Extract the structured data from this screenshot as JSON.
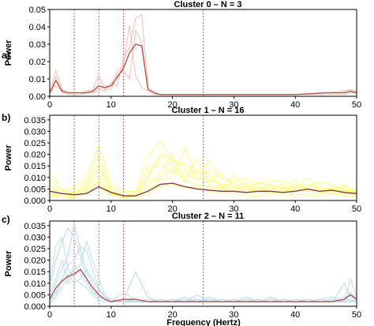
{
  "figure": {
    "xlabel": "Frequency (Hertz)"
  },
  "chart_data": [
    {
      "type": "line",
      "panel_label": "a)",
      "title": "Cluster 0 – N = 3",
      "xlabel": "",
      "ylabel": "Power",
      "xlim": [
        0,
        50
      ],
      "ylim": [
        0,
        0.05
      ],
      "xticks": [
        "0",
        "10",
        "20",
        "30",
        "40",
        "50"
      ],
      "yticks": [
        "0.00",
        "0.01",
        "0.02",
        "0.03",
        "0.04",
        "0.05"
      ],
      "ytick_values": [
        0,
        0.01,
        0.02,
        0.03,
        0.04,
        0.05
      ],
      "vlines": [
        4,
        8,
        12,
        25
      ],
      "colors": {
        "individual": "#f3b4a5",
        "mean": "#c0504d",
        "vline": "#e06060"
      },
      "x": [
        0,
        1,
        2,
        3,
        4,
        5,
        6,
        7,
        8,
        9,
        10,
        11,
        12,
        13,
        14,
        15,
        16,
        17,
        18,
        20,
        22,
        25,
        30,
        35,
        40,
        45,
        48,
        49,
        50
      ],
      "series": [
        {
          "values": [
            0.002,
            0.006,
            0.003,
            0.002,
            0.002,
            0.002,
            0.002,
            0.002,
            0.004,
            0.003,
            0.008,
            0.006,
            0.022,
            0.028,
            0.045,
            0.047,
            0.006,
            0.002,
            0.001,
            0.001,
            0.001,
            0.001,
            0.001,
            0.001,
            0.001,
            0.002,
            0.002,
            0.003,
            0.002
          ]
        },
        {
          "values": [
            0.002,
            0.015,
            0.004,
            0.002,
            0.002,
            0.002,
            0.003,
            0.004,
            0.012,
            0.004,
            0.004,
            0.012,
            0.015,
            0.01,
            0.038,
            0.031,
            0.004,
            0.002,
            0.001,
            0.001,
            0.001,
            0.001,
            0.001,
            0.001,
            0.001,
            0.002,
            0.003,
            0.004,
            0.003
          ]
        },
        {
          "values": [
            0.002,
            0.011,
            0.002,
            0.001,
            0.001,
            0.001,
            0.002,
            0.002,
            0.004,
            0.006,
            0.006,
            0.014,
            0.018,
            0.041,
            0.012,
            0.005,
            0.003,
            0.001,
            0.001,
            0.001,
            0.001,
            0.001,
            0.001,
            0.001,
            0.001,
            0.001,
            0.001,
            0.002,
            0.002
          ]
        }
      ],
      "mean": [
        0.002,
        0.009,
        0.003,
        0.002,
        0.002,
        0.002,
        0.002,
        0.003,
        0.006,
        0.005,
        0.006,
        0.011,
        0.016,
        0.025,
        0.03,
        0.029,
        0.004,
        0.002,
        0.001,
        0.001,
        0.001,
        0.001,
        0.001,
        0.001,
        0.001,
        0.002,
        0.002,
        0.003,
        0.002
      ]
    },
    {
      "type": "line",
      "panel_label": "b)",
      "title": "Cluster 1 – N = 16",
      "xlabel": "",
      "ylabel": "Power",
      "xlim": [
        0,
        50
      ],
      "ylim": [
        0,
        0.037
      ],
      "xticks": [
        "0",
        "10",
        "20",
        "30",
        "40",
        "50"
      ],
      "yticks": [
        "0.000",
        "0.005",
        "0.010",
        "0.015",
        "0.020",
        "0.025",
        "0.030",
        "0.035"
      ],
      "ytick_values": [
        0,
        0.005,
        0.01,
        0.015,
        0.02,
        0.025,
        0.03,
        0.035
      ],
      "vlines": [
        4,
        8,
        12,
        25
      ],
      "colors": {
        "individual": "#ffff66",
        "mean": "#8b3a3a",
        "vline": "#e06060"
      },
      "x": [
        0,
        2,
        4,
        6,
        8,
        10,
        12,
        14,
        16,
        18,
        20,
        22,
        24,
        26,
        28,
        30,
        32,
        34,
        36,
        38,
        40,
        42,
        44,
        46,
        48,
        50
      ],
      "series": [
        {
          "values": [
            0.006,
            0.004,
            0.003,
            0.006,
            0.014,
            0.005,
            0.002,
            0.003,
            0.01,
            0.019,
            0.015,
            0.012,
            0.009,
            0.011,
            0.006,
            0.005,
            0.006,
            0.004,
            0.005,
            0.006,
            0.004,
            0.007,
            0.005,
            0.004,
            0.003,
            0.003
          ]
        },
        {
          "values": [
            0.003,
            0.002,
            0.002,
            0.004,
            0.009,
            0.003,
            0.001,
            0.002,
            0.006,
            0.012,
            0.02,
            0.008,
            0.014,
            0.007,
            0.004,
            0.008,
            0.003,
            0.006,
            0.004,
            0.003,
            0.009,
            0.004,
            0.006,
            0.003,
            0.005,
            0.002
          ]
        },
        {
          "values": [
            0.012,
            0.005,
            0.004,
            0.008,
            0.02,
            0.006,
            0.003,
            0.002,
            0.004,
            0.009,
            0.01,
            0.023,
            0.011,
            0.013,
            0.005,
            0.004,
            0.007,
            0.005,
            0.003,
            0.005,
            0.006,
            0.005,
            0.003,
            0.006,
            0.004,
            0.004
          ]
        },
        {
          "values": [
            0.004,
            0.003,
            0.003,
            0.005,
            0.011,
            0.004,
            0.002,
            0.003,
            0.014,
            0.016,
            0.012,
            0.01,
            0.018,
            0.009,
            0.007,
            0.006,
            0.004,
            0.008,
            0.006,
            0.004,
            0.005,
            0.01,
            0.004,
            0.005,
            0.006,
            0.003
          ]
        },
        {
          "values": [
            0.002,
            0.002,
            0.001,
            0.003,
            0.006,
            0.002,
            0.001,
            0.001,
            0.003,
            0.006,
            0.007,
            0.005,
            0.006,
            0.004,
            0.003,
            0.003,
            0.002,
            0.002,
            0.003,
            0.002,
            0.003,
            0.002,
            0.002,
            0.003,
            0.002,
            0.002
          ]
        },
        {
          "values": [
            0.009,
            0.004,
            0.006,
            0.01,
            0.024,
            0.008,
            0.004,
            0.004,
            0.019,
            0.026,
            0.017,
            0.016,
            0.012,
            0.017,
            0.009,
            0.008,
            0.01,
            0.007,
            0.009,
            0.008,
            0.007,
            0.006,
            0.008,
            0.007,
            0.005,
            0.004
          ]
        },
        {
          "values": [
            0.003,
            0.003,
            0.002,
            0.004,
            0.008,
            0.003,
            0.002,
            0.002,
            0.008,
            0.01,
            0.014,
            0.009,
            0.007,
            0.006,
            0.005,
            0.011,
            0.005,
            0.004,
            0.007,
            0.005,
            0.004,
            0.005,
            0.003,
            0.004,
            0.007,
            0.003
          ]
        },
        {
          "values": [
            0.005,
            0.003,
            0.003,
            0.007,
            0.016,
            0.004,
            0.002,
            0.003,
            0.011,
            0.02,
            0.018,
            0.014,
            0.01,
            0.008,
            0.012,
            0.006,
            0.008,
            0.006,
            0.005,
            0.007,
            0.005,
            0.004,
            0.006,
            0.005,
            0.004,
            0.005
          ]
        }
      ],
      "mean": [
        0.004,
        0.003,
        0.0025,
        0.003,
        0.006,
        0.0035,
        0.002,
        0.002,
        0.004,
        0.007,
        0.0075,
        0.006,
        0.005,
        0.0045,
        0.004,
        0.004,
        0.0035,
        0.004,
        0.004,
        0.0035,
        0.004,
        0.005,
        0.004,
        0.0045,
        0.0035,
        0.003
      ]
    },
    {
      "type": "line",
      "panel_label": "c)",
      "title": "Cluster 2 – N = 11",
      "xlabel": "Frequency (Hertz)",
      "ylabel": "Power",
      "xlim": [
        0,
        50
      ],
      "ylim": [
        0,
        0.037
      ],
      "xticks": [
        "0",
        "10",
        "20",
        "30",
        "40",
        "50"
      ],
      "yticks": [
        "0.000",
        "0.005",
        "0.010",
        "0.015",
        "0.020",
        "0.025",
        "0.030",
        "0.035"
      ],
      "ytick_values": [
        0,
        0.005,
        0.01,
        0.015,
        0.02,
        0.025,
        0.03,
        0.035
      ],
      "vlines": [
        4,
        8,
        12,
        25
      ],
      "colors": {
        "individual": "#a8d8ea",
        "mean": "#c0504d",
        "vline": "#e06060"
      },
      "x": [
        0,
        1,
        2,
        3,
        4,
        5,
        6,
        7,
        8,
        9,
        10,
        12,
        14,
        16,
        18,
        20,
        22,
        24,
        26,
        28,
        30,
        32,
        34,
        36,
        38,
        40,
        42,
        44,
        46,
        48,
        49,
        50
      ],
      "series": [
        {
          "values": [
            0.008,
            0.02,
            0.028,
            0.034,
            0.03,
            0.022,
            0.012,
            0.006,
            0.004,
            0.003,
            0.002,
            0.006,
            0.003,
            0.002,
            0.003,
            0.002,
            0.003,
            0.002,
            0.004,
            0.002,
            0.003,
            0.002,
            0.002,
            0.003,
            0.002,
            0.002,
            0.003,
            0.002,
            0.002,
            0.003,
            0.006,
            0.003
          ]
        },
        {
          "values": [
            0.004,
            0.01,
            0.016,
            0.022,
            0.036,
            0.025,
            0.015,
            0.01,
            0.005,
            0.003,
            0.002,
            0.003,
            0.015,
            0.004,
            0.002,
            0.003,
            0.002,
            0.005,
            0.002,
            0.003,
            0.002,
            0.004,
            0.002,
            0.002,
            0.003,
            0.002,
            0.002,
            0.003,
            0.004,
            0.002,
            0.003,
            0.002
          ]
        },
        {
          "values": [
            0.002,
            0.005,
            0.012,
            0.018,
            0.02,
            0.026,
            0.024,
            0.016,
            0.008,
            0.004,
            0.003,
            0.002,
            0.003,
            0.002,
            0.002,
            0.003,
            0.002,
            0.002,
            0.003,
            0.002,
            0.002,
            0.003,
            0.002,
            0.002,
            0.002,
            0.003,
            0.002,
            0.002,
            0.002,
            0.01,
            0.004,
            0.003
          ]
        },
        {
          "values": [
            0.01,
            0.026,
            0.03,
            0.016,
            0.012,
            0.01,
            0.008,
            0.005,
            0.003,
            0.002,
            0.002,
            0.002,
            0.002,
            0.003,
            0.002,
            0.002,
            0.002,
            0.002,
            0.002,
            0.002,
            0.002,
            0.002,
            0.003,
            0.002,
            0.002,
            0.002,
            0.002,
            0.002,
            0.003,
            0.002,
            0.002,
            0.002
          ]
        },
        {
          "values": [
            0.001,
            0.004,
            0.008,
            0.012,
            0.016,
            0.018,
            0.028,
            0.02,
            0.012,
            0.005,
            0.003,
            0.002,
            0.002,
            0.002,
            0.003,
            0.002,
            0.002,
            0.003,
            0.002,
            0.002,
            0.002,
            0.002,
            0.002,
            0.002,
            0.002,
            0.002,
            0.003,
            0.002,
            0.002,
            0.002,
            0.003,
            0.002
          ]
        },
        {
          "values": [
            0.006,
            0.012,
            0.02,
            0.01,
            0.018,
            0.014,
            0.01,
            0.006,
            0.004,
            0.003,
            0.002,
            0.003,
            0.002,
            0.002,
            0.002,
            0.002,
            0.004,
            0.002,
            0.002,
            0.003,
            0.002,
            0.002,
            0.002,
            0.004,
            0.002,
            0.002,
            0.002,
            0.003,
            0.002,
            0.004,
            0.002,
            0.003
          ]
        },
        {
          "values": [
            0.003,
            0.006,
            0.01,
            0.014,
            0.01,
            0.012,
            0.016,
            0.012,
            0.007,
            0.004,
            0.002,
            0.002,
            0.002,
            0.002,
            0.002,
            0.002,
            0.002,
            0.002,
            0.002,
            0.002,
            0.002,
            0.002,
            0.002,
            0.002,
            0.002,
            0.002,
            0.002,
            0.002,
            0.002,
            0.002,
            0.012,
            0.004
          ]
        }
      ],
      "mean": [
        0.003,
        0.008,
        0.011,
        0.013,
        0.014,
        0.016,
        0.012,
        0.008,
        0.005,
        0.003,
        0.002,
        0.003,
        0.003,
        0.002,
        0.002,
        0.002,
        0.002,
        0.002,
        0.002,
        0.002,
        0.002,
        0.002,
        0.002,
        0.002,
        0.002,
        0.002,
        0.002,
        0.002,
        0.002,
        0.003,
        0.005,
        0.003
      ]
    }
  ]
}
